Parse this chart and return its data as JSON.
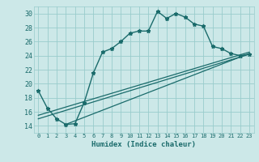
{
  "title": "",
  "xlabel": "Humidex (Indice chaleur)",
  "bg_color": "#cce8e8",
  "grid_color": "#99cccc",
  "line_color": "#1a6b6b",
  "xlim": [
    -0.5,
    23.5
  ],
  "ylim": [
    13.0,
    31.0
  ],
  "yticks": [
    14,
    16,
    18,
    20,
    22,
    24,
    26,
    28,
    30
  ],
  "xticks": [
    0,
    1,
    2,
    3,
    4,
    5,
    6,
    7,
    8,
    9,
    10,
    11,
    12,
    13,
    14,
    15,
    16,
    17,
    18,
    19,
    20,
    21,
    22,
    23
  ],
  "main_x": [
    0,
    1,
    2,
    3,
    4,
    5,
    6,
    7,
    8,
    9,
    10,
    11,
    12,
    13,
    14,
    15,
    16,
    17,
    18,
    19,
    20,
    21,
    22,
    23
  ],
  "main_y": [
    19.0,
    16.5,
    15.0,
    14.2,
    14.3,
    17.3,
    21.5,
    24.5,
    25.0,
    26.0,
    27.2,
    27.5,
    27.5,
    30.3,
    29.3,
    30.0,
    29.5,
    28.5,
    28.2,
    25.3,
    25.0,
    24.3,
    24.0,
    24.2
  ],
  "trend1_x": [
    0,
    23
  ],
  "trend1_y": [
    15.5,
    24.5
  ],
  "trend2_x": [
    0,
    23
  ],
  "trend2_y": [
    15.0,
    24.2
  ],
  "trend3_x": [
    3,
    23
  ],
  "trend3_y": [
    14.2,
    24.3
  ]
}
